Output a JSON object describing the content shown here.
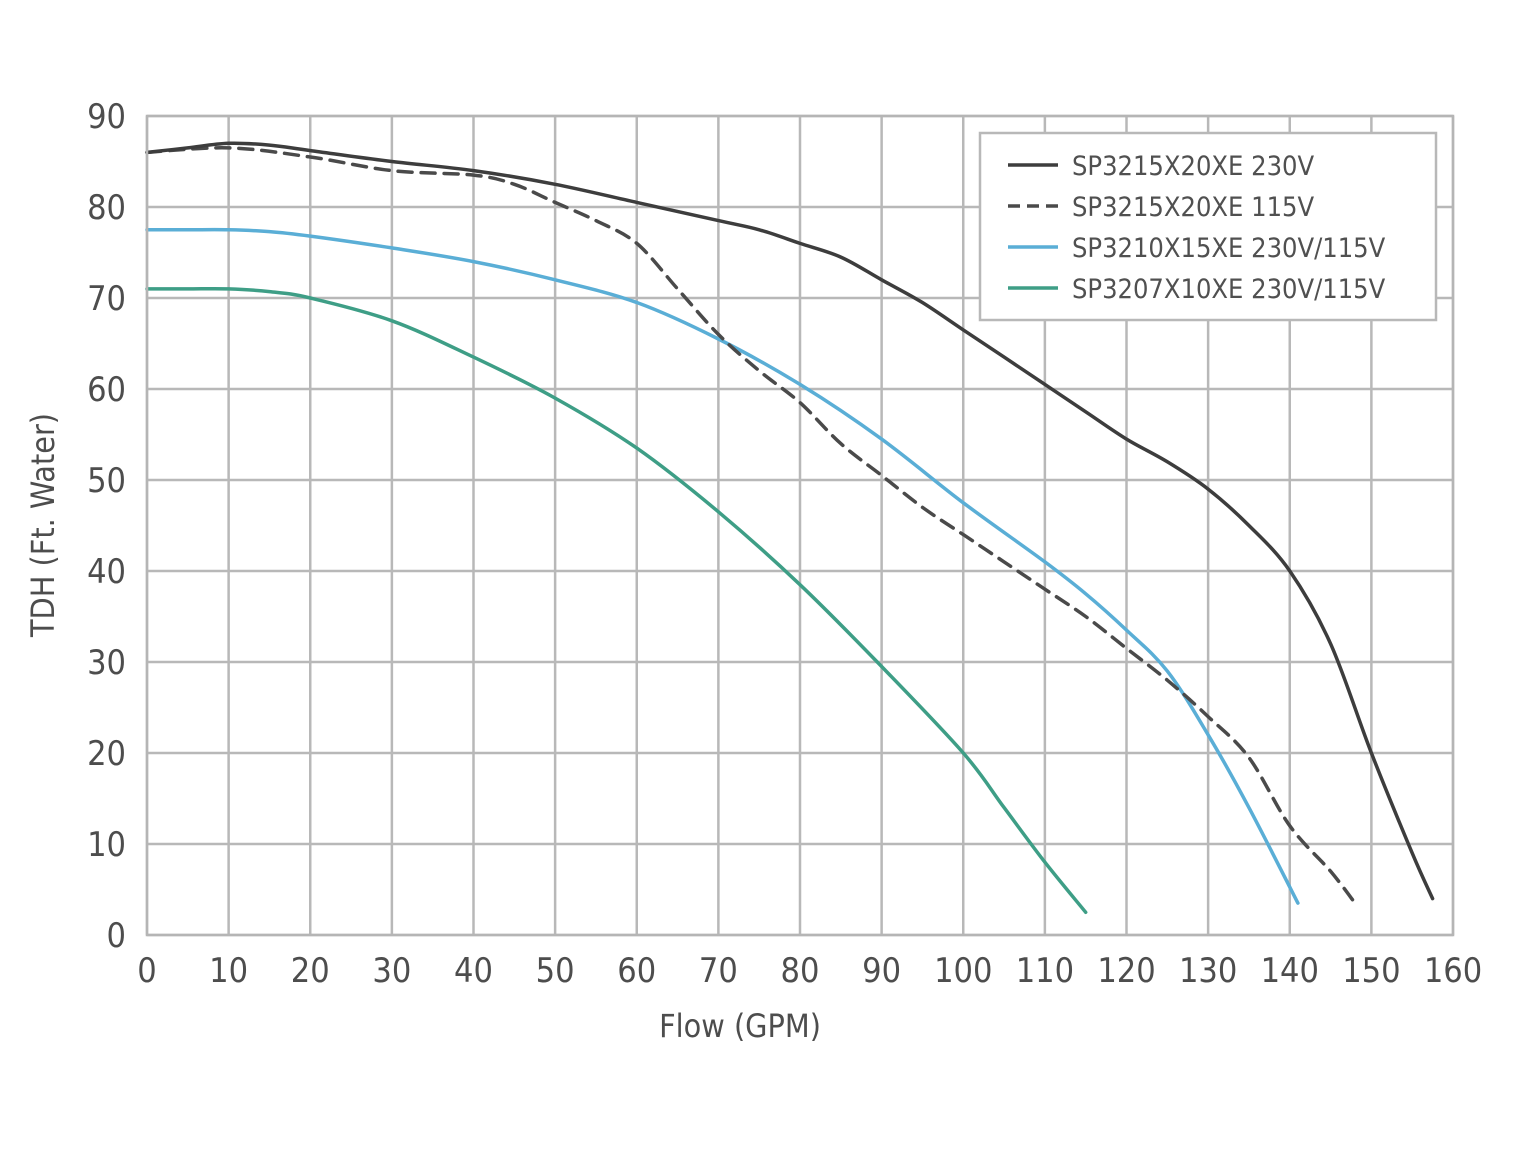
{
  "chart_data": {
    "type": "line",
    "title": "",
    "xlabel": "Flow (GPM)",
    "ylabel": "TDH (Ft. Water)",
    "xlim": [
      0,
      160
    ],
    "ylim": [
      0,
      90
    ],
    "xticks": [
      0,
      10,
      20,
      30,
      40,
      50,
      60,
      70,
      80,
      90,
      100,
      110,
      120,
      130,
      140,
      150,
      160
    ],
    "yticks": [
      0,
      10,
      20,
      30,
      40,
      50,
      60,
      70,
      80,
      90
    ],
    "grid": true,
    "legend_position": "top-right",
    "series": [
      {
        "name": "SP3215X20XE 230V",
        "color": "#3d3d3d",
        "style": "solid",
        "x": [
          0,
          5,
          10,
          15,
          20,
          30,
          40,
          50,
          60,
          70,
          75,
          80,
          85,
          90,
          95,
          100,
          105,
          110,
          115,
          120,
          125,
          130,
          135,
          140,
          145,
          150,
          155,
          157.5
        ],
        "y": [
          86,
          86.5,
          87,
          86.8,
          86.2,
          85,
          84,
          82.5,
          80.5,
          78.5,
          77.5,
          76,
          74.5,
          72,
          69.5,
          66.5,
          63.5,
          60.5,
          57.5,
          54.5,
          52,
          49,
          45,
          40,
          32,
          20,
          9,
          4
        ]
      },
      {
        "name": "SP3215X20XE 115V",
        "color": "#4a4a4a",
        "style": "dashed",
        "x": [
          0,
          10,
          20,
          30,
          40,
          45,
          50,
          55,
          60,
          65,
          70,
          75,
          80,
          85,
          90,
          95,
          100,
          105,
          110,
          115,
          120,
          125,
          130,
          135,
          140,
          145,
          148
        ],
        "y": [
          86,
          86.5,
          85.5,
          84,
          83.5,
          82.5,
          80.5,
          78.5,
          76,
          71,
          66,
          62,
          58.5,
          54,
          50.5,
          47,
          44,
          41,
          38,
          35,
          31.5,
          28,
          24,
          19.5,
          12,
          7,
          3.5
        ]
      },
      {
        "name": "SP3210X15XE 230V/115V",
        "color": "#5aaed6",
        "style": "solid",
        "x": [
          0,
          5,
          10,
          15,
          20,
          30,
          40,
          50,
          60,
          70,
          80,
          90,
          100,
          110,
          115,
          120,
          125,
          130,
          135,
          141
        ],
        "y": [
          77.5,
          77.5,
          77.5,
          77.3,
          76.8,
          75.5,
          74,
          72,
          69.5,
          65.5,
          60.5,
          54.5,
          47.5,
          41,
          37.5,
          33.5,
          29,
          22,
          14,
          3.5
        ]
      },
      {
        "name": "SP3207X10XE 230V/115V",
        "color": "#3e9e86",
        "style": "solid",
        "x": [
          0,
          5,
          10,
          15,
          20,
          30,
          40,
          50,
          60,
          70,
          80,
          90,
          100,
          105,
          110,
          115
        ],
        "y": [
          71,
          71,
          71,
          70.7,
          70,
          67.5,
          63.5,
          59,
          53.5,
          46.5,
          38.5,
          29.5,
          20,
          14,
          8,
          2.5
        ]
      }
    ]
  }
}
